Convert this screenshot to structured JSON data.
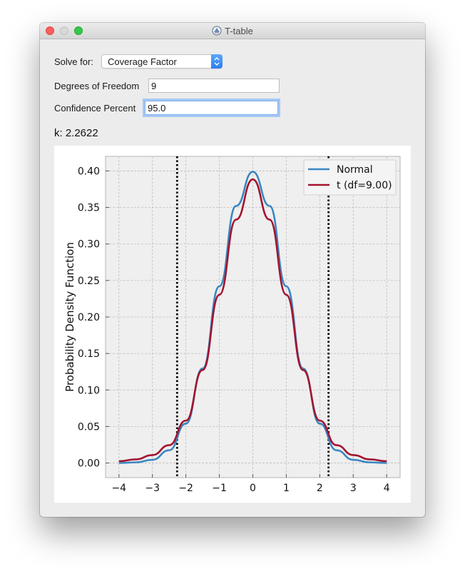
{
  "window": {
    "title": "T-table"
  },
  "form": {
    "solve_for_label": "Solve for:",
    "solve_for_value": "Coverage Factor",
    "dof_label": "Degrees of Freedom",
    "dof_value": "9",
    "confidence_label": "Confidence Percent",
    "confidence_value": "95.0"
  },
  "result": {
    "text": "k: 2.2622"
  },
  "colors": {
    "normal": "#3a87c2",
    "t": "#a3142f",
    "accent": "#2d7ef0"
  },
  "chart_data": {
    "type": "line",
    "ylabel": "Probability Density Function",
    "xlabel": "",
    "xlim": [
      -4.4,
      4.4
    ],
    "ylim": [
      -0.02,
      0.42
    ],
    "x_ticks": [
      -4,
      -3,
      -2,
      -1,
      0,
      1,
      2,
      3,
      4
    ],
    "x_tick_labels": [
      "−4",
      "−3",
      "−2",
      "−1",
      "0",
      "1",
      "2",
      "3",
      "4"
    ],
    "y_ticks": [
      0.0,
      0.05,
      0.1,
      0.15,
      0.2,
      0.25,
      0.3,
      0.35,
      0.4
    ],
    "y_tick_labels": [
      "0.00",
      "0.05",
      "0.10",
      "0.15",
      "0.20",
      "0.25",
      "0.30",
      "0.35",
      "0.40"
    ],
    "grid": true,
    "legend_position": "top-right",
    "series": [
      {
        "name": "Normal",
        "x": [
          -4,
          -3.5,
          -3,
          -2.5,
          -2,
          -1.5,
          -1,
          -0.5,
          0,
          0.5,
          1,
          1.5,
          2,
          2.5,
          3,
          3.5,
          4
        ],
        "y": [
          0.0001,
          0.0009,
          0.0044,
          0.0175,
          0.054,
          0.1295,
          0.242,
          0.3521,
          0.3989,
          0.3521,
          0.242,
          0.1295,
          0.054,
          0.0175,
          0.0044,
          0.0009,
          0.0001
        ]
      },
      {
        "name": "t (df=9.00)",
        "x": [
          -4,
          -3.5,
          -3,
          -2.5,
          -2,
          -1.5,
          -1,
          -0.5,
          0,
          0.5,
          1,
          1.5,
          2,
          2.5,
          3,
          3.5,
          4
        ],
        "y": [
          0.0025,
          0.005,
          0.0109,
          0.0244,
          0.0581,
          0.1273,
          0.2304,
          0.3334,
          0.3884,
          0.3334,
          0.2304,
          0.1273,
          0.0581,
          0.0244,
          0.0109,
          0.005,
          0.0025
        ]
      }
    ],
    "vlines": [
      -2.2622,
      2.2622
    ]
  }
}
